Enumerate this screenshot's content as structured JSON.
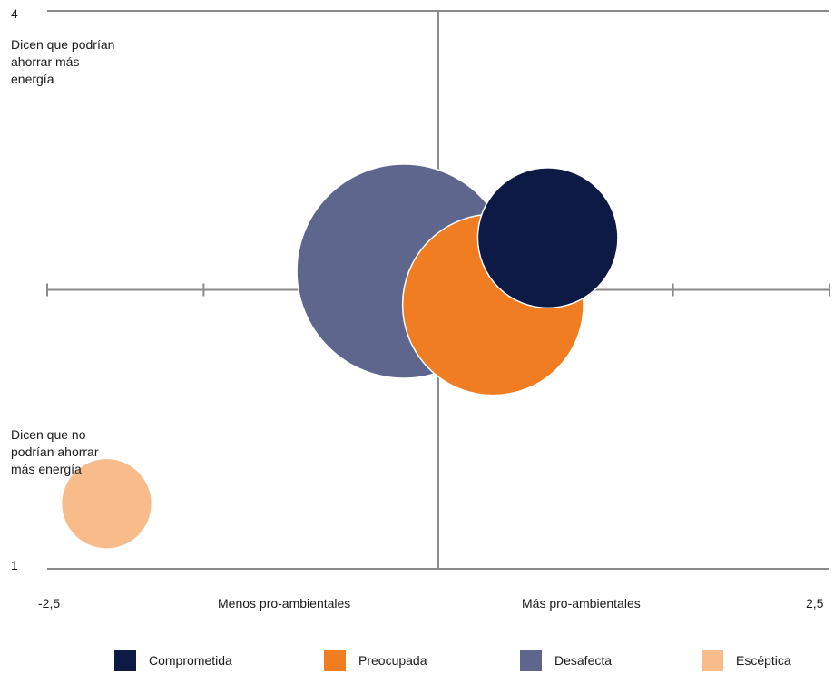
{
  "chart_data": {
    "type": "scatter",
    "title": "",
    "xlim": [
      -2.5,
      2.5
    ],
    "ylim": [
      1,
      4
    ],
    "x_tick_labels": {
      "min": "-2,5",
      "max": "2,5"
    },
    "y_tick_labels": {
      "min": "1",
      "max": "4"
    },
    "x_axis_left_label": "Menos pro-ambientales",
    "x_axis_right_label": "Más pro-ambientales",
    "y_top_annotation": [
      "Dicen que podrían",
      "ahorrar más",
      "energía"
    ],
    "y_bottom_annotation": [
      "Dicen que no",
      "podrían ahorrar",
      "más energía"
    ],
    "series": [
      {
        "name": "Comprometida",
        "x": 0.7,
        "y": 2.78,
        "size": 0.6,
        "color": "#0d1a45"
      },
      {
        "name": "Preocupada",
        "x": 0.35,
        "y": 2.42,
        "size": 1.0,
        "color": "#f07d22"
      },
      {
        "name": "Desafecta",
        "x": -0.22,
        "y": 2.6,
        "size": 1.4,
        "color": "#5f668d"
      },
      {
        "name": "Escéptica",
        "x": -2.12,
        "y": 1.35,
        "size": 0.25,
        "color": "#f8bb8a"
      }
    ]
  }
}
